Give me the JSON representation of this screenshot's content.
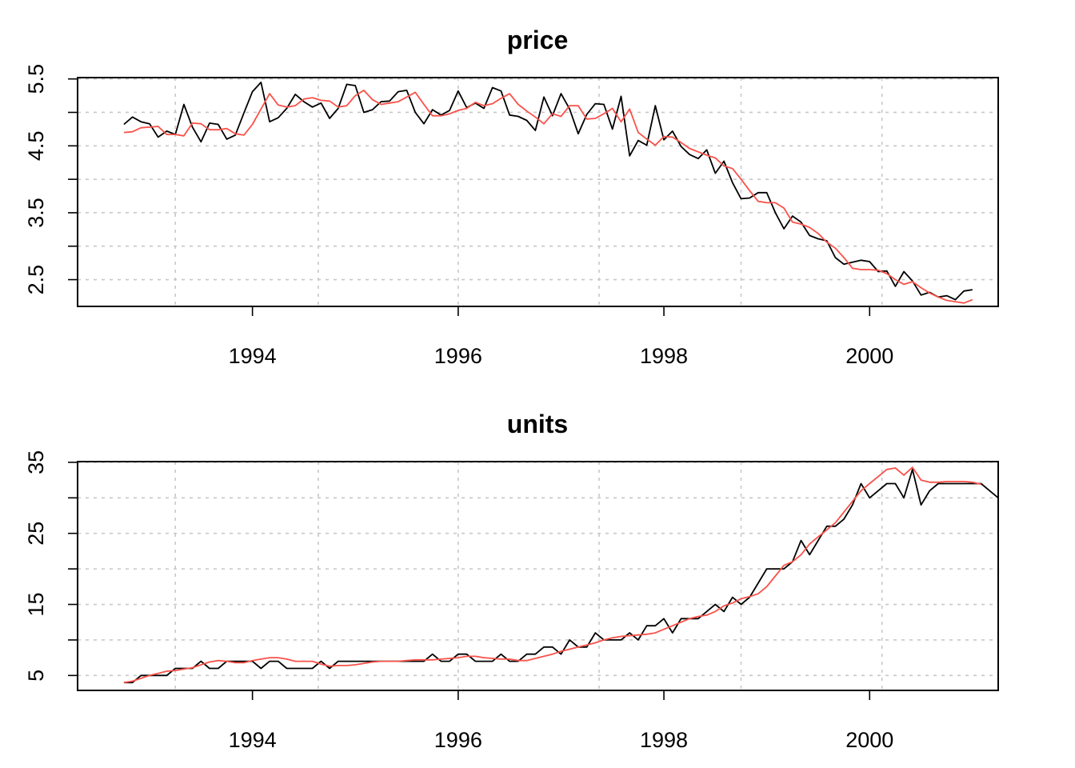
{
  "colors": {
    "observed": "#000000",
    "smoothed": "#F8524A",
    "grid": "#c8c8c8",
    "background": "#ffffff"
  },
  "chart_data": [
    {
      "type": "line",
      "title": "price",
      "xlabel": "",
      "ylabel": "",
      "xlim": [
        1992.3,
        2001.25
      ],
      "ylim": [
        2.1,
        5.52
      ],
      "x_start": 1992.75,
      "x_step": 0.0833333,
      "x_ticks": [
        1994,
        1996,
        1998,
        2000
      ],
      "x_ticklabels": [
        "1994",
        "1996",
        "1998",
        "2000"
      ],
      "x_grid": [
        1993.25,
        1994.64,
        1996.0,
        1997.37,
        1998.75,
        2000.12
      ],
      "y_ticks": [
        2.5,
        3.0,
        3.5,
        4.0,
        4.5,
        5.0,
        5.5
      ],
      "y_ticklabels": [
        "2.5",
        "",
        "3.5",
        "",
        "4.5",
        "",
        "5.5"
      ],
      "grid": true,
      "series": [
        {
          "values": [
            4.82,
            4.93,
            4.86,
            4.83,
            4.63,
            4.72,
            4.67,
            5.12,
            4.78,
            4.56,
            4.84,
            4.82,
            4.6,
            4.66,
            4.99,
            5.31,
            5.45,
            4.86,
            4.92,
            5.06,
            5.27,
            5.16,
            5.08,
            5.14,
            4.91,
            5.06,
            5.42,
            5.4,
            5.0,
            5.04,
            5.16,
            5.17,
            5.31,
            5.33,
            5.0,
            4.83,
            5.04,
            4.96,
            5.03,
            5.32,
            5.07,
            5.14,
            5.06,
            5.37,
            5.32,
            4.96,
            4.94,
            4.88,
            4.73,
            5.23,
            4.95,
            5.28,
            5.05,
            4.68,
            4.97,
            5.13,
            5.12,
            4.75,
            5.24,
            4.35,
            4.58,
            4.51,
            5.1,
            4.59,
            4.72,
            4.49,
            4.37,
            4.31,
            4.44,
            4.09,
            4.27,
            3.95,
            3.71,
            3.72,
            3.8,
            3.8,
            3.5,
            3.26,
            3.45,
            3.36,
            3.16,
            3.11,
            3.08,
            2.83,
            2.73,
            2.76,
            2.79,
            2.77,
            2.62,
            2.63,
            2.4,
            2.62,
            2.48,
            2.27,
            2.31,
            2.24,
            2.26,
            2.2,
            2.33,
            2.35
          ]
        },
        {
          "values": [
            4.7,
            4.71,
            4.77,
            4.78,
            4.79,
            4.67,
            4.67,
            4.65,
            4.84,
            4.83,
            4.74,
            4.74,
            4.76,
            4.68,
            4.66,
            4.82,
            5.05,
            5.28,
            5.11,
            5.08,
            5.1,
            5.2,
            5.22,
            5.18,
            5.17,
            5.08,
            5.1,
            5.25,
            5.33,
            5.19,
            5.12,
            5.14,
            5.16,
            5.23,
            5.3,
            5.12,
            4.95,
            4.95,
            4.98,
            5.03,
            5.06,
            5.15,
            5.1,
            5.13,
            5.21,
            5.28,
            5.12,
            5.02,
            4.93,
            4.83,
            4.98,
            4.94,
            5.1,
            5.1,
            4.9,
            4.91,
            4.98,
            5.06,
            4.86,
            5.05,
            4.7,
            4.6,
            4.51,
            4.64,
            4.63,
            4.55,
            4.46,
            4.41,
            4.36,
            4.32,
            4.2,
            4.16,
            4.0,
            3.83,
            3.67,
            3.65,
            3.65,
            3.57,
            3.36,
            3.33,
            3.28,
            3.19,
            3.06,
            2.97,
            2.83,
            2.67,
            2.65,
            2.65,
            2.64,
            2.59,
            2.5,
            2.43,
            2.47,
            2.38,
            2.3,
            2.24,
            2.19,
            2.17,
            2.15,
            2.2
          ]
        }
      ]
    },
    {
      "type": "line",
      "title": "units",
      "xlabel": "",
      "ylabel": "",
      "xlim": [
        1992.3,
        2001.25
      ],
      "ylim": [
        2.9,
        35.1
      ],
      "x_start": 1992.75,
      "x_step": 0.0833333,
      "x_ticks": [
        1994,
        1996,
        1998,
        2000
      ],
      "x_ticklabels": [
        "1994",
        "1996",
        "1998",
        "2000"
      ],
      "x_grid": [
        1993.25,
        1994.64,
        1996.0,
        1997.37,
        1998.75,
        2000.12
      ],
      "y_ticks": [
        5,
        10,
        15,
        20,
        25,
        30,
        35
      ],
      "y_ticklabels": [
        "5",
        "",
        "15",
        "",
        "25",
        "",
        "35"
      ],
      "grid": true,
      "series": [
        {
          "values": [
            4,
            4,
            5,
            5,
            5,
            5,
            6,
            6,
            6,
            7,
            6,
            6,
            7,
            7,
            7,
            7,
            6,
            7,
            7,
            6,
            6,
            6,
            6,
            7,
            6,
            7,
            7,
            7,
            7,
            7,
            7,
            7,
            7,
            7,
            7,
            7,
            8,
            7,
            7,
            8,
            8,
            7,
            7,
            7,
            8,
            7,
            7,
            8,
            8,
            9,
            9,
            8,
            10,
            9,
            9,
            11,
            10,
            10,
            10,
            11,
            10,
            12,
            12,
            13,
            11,
            13,
            13,
            13,
            14,
            15,
            14,
            16,
            15,
            16,
            18,
            20,
            20,
            20,
            21,
            24,
            22,
            24,
            26,
            26,
            27,
            29,
            32,
            30,
            31,
            32,
            32,
            30,
            34,
            29,
            31,
            32,
            32,
            32,
            32,
            32,
            32,
            31,
            30
          ]
        },
        {
          "values": [
            4,
            4.2,
            4.6,
            5.0,
            5.3,
            5.6,
            5.7,
            5.9,
            6.1,
            6.5,
            6.9,
            7.1,
            7.0,
            6.8,
            6.8,
            7.1,
            7.3,
            7.5,
            7.5,
            7.3,
            7.0,
            7.0,
            7.0,
            6.6,
            6.3,
            6.4,
            6.4,
            6.5,
            6.7,
            6.9,
            7.0,
            7.0,
            7.0,
            7.1,
            7.2,
            7.2,
            7.2,
            7.3,
            7.4,
            7.5,
            7.7,
            7.7,
            7.5,
            7.4,
            7.3,
            7.3,
            7.1,
            7.1,
            7.4,
            7.7,
            8.0,
            8.4,
            8.7,
            9.0,
            9.3,
            9.6,
            10.0,
            10.3,
            10.5,
            10.6,
            10.7,
            10.8,
            11.0,
            11.5,
            12.0,
            12.5,
            13.0,
            13.3,
            13.5,
            14.0,
            14.8,
            15.2,
            15.8,
            16.1,
            16.5,
            17.5,
            19.0,
            20.5,
            21.0,
            22.0,
            23.5,
            24.5,
            25.5,
            26.5,
            28.0,
            29.5,
            31.0,
            32.0,
            33.0,
            34.0,
            34.2,
            33.2,
            34.3,
            32.5,
            32.2,
            32.2,
            32.3,
            32.3,
            32.3,
            32.2,
            31.9
          ]
        }
      ]
    }
  ]
}
